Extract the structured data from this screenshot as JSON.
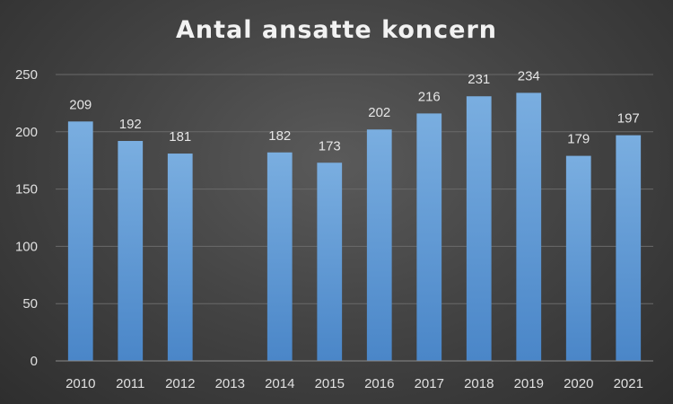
{
  "chart_data": {
    "type": "bar",
    "title": "Antal ansatte koncern",
    "xlabel": "",
    "ylabel": "",
    "categories": [
      "2010",
      "2011",
      "2012",
      "2013",
      "2014",
      "2015",
      "2016",
      "2017",
      "2018",
      "2019",
      "2020",
      "2021"
    ],
    "values": [
      209,
      192,
      181,
      null,
      182,
      173,
      202,
      216,
      231,
      234,
      179,
      197
    ],
    "data_labels": [
      "209",
      "192",
      "181",
      "",
      "182",
      "173",
      "202",
      "216",
      "231",
      "234",
      "179",
      "197"
    ],
    "ylim": [
      0,
      250
    ],
    "yticks": [
      0,
      50,
      100,
      150,
      200,
      250
    ],
    "grid": true,
    "legend": "none",
    "bar_color": "#5b9bd5",
    "background_color": "#404040"
  }
}
